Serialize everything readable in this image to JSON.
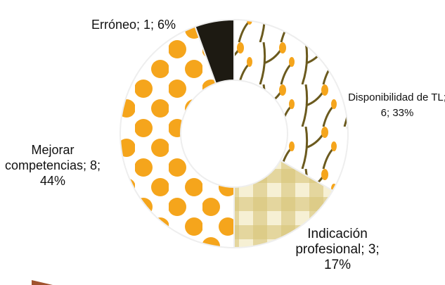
{
  "chart_data": {
    "type": "donut",
    "labels": [
      "Disponibilidad de TL; 6; 33%",
      "Indicación profesional; 3; 17%",
      "Mejorar competencias; 8; 44%",
      "Erróneo; 1; 6%"
    ],
    "values": [
      6,
      3,
      8,
      1
    ],
    "colors": [
      "#ffffff",
      "#e9dca0",
      "#ffffff",
      "#1d1a12"
    ]
  }
}
